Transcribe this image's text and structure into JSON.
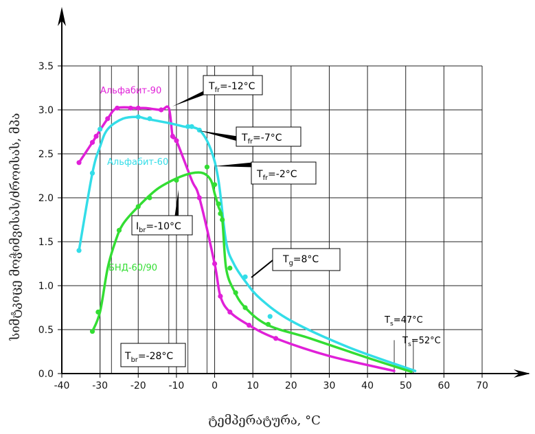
{
  "chart_data": {
    "type": "line",
    "xlabel": "ტემპერატურა, °C",
    "ylabel": "სიმტკიცე მოჭიმვისას/ძროისას, მპა",
    "xlim": [
      -40,
      70
    ],
    "ylim": [
      0,
      3.5
    ],
    "x_ticks": [
      -40,
      -30,
      -20,
      -10,
      0,
      10,
      20,
      30,
      40,
      50,
      60,
      70
    ],
    "y_ticks": [
      0.0,
      0.5,
      1.0,
      1.5,
      2.0,
      2.5,
      3.0,
      3.5
    ],
    "x_tick_labels": [
      "-40",
      "-30",
      "-20",
      "-10",
      "0",
      "10",
      "20",
      "30",
      "40",
      "50",
      "60",
      "70"
    ],
    "y_tick_labels": [
      "0.0",
      "0.5",
      "1.0",
      "1.5",
      "2.0",
      "2.5",
      "3.0",
      "3.5"
    ],
    "grid": true,
    "series": [
      {
        "name": "Альфабит-90",
        "color": "#e020d8",
        "points": [
          [
            -35.5,
            2.4
          ],
          [
            -32,
            2.63
          ],
          [
            -31,
            2.7
          ],
          [
            -28,
            2.9
          ],
          [
            -25.5,
            3.02
          ],
          [
            -20,
            3.02
          ],
          [
            -18,
            3.02
          ],
          [
            -14,
            3.0
          ],
          [
            -12,
            3.02
          ],
          [
            -11,
            2.7
          ],
          [
            -10,
            2.65
          ],
          [
            -6,
            2.2
          ],
          [
            -4,
            2.0
          ],
          [
            0,
            1.25
          ],
          [
            1.5,
            0.88
          ],
          [
            4,
            0.7
          ],
          [
            9,
            0.55
          ],
          [
            16,
            0.4
          ],
          [
            30,
            0.2
          ],
          [
            47,
            0.03
          ]
        ],
        "markers": [
          [
            -35.5,
            2.4
          ],
          [
            -32,
            2.63
          ],
          [
            -31,
            2.7
          ],
          [
            -28,
            2.9
          ],
          [
            -25.5,
            3.02
          ],
          [
            -22,
            3.02
          ],
          [
            -20,
            3.02
          ],
          [
            -14,
            3.0
          ],
          [
            -11,
            2.7
          ],
          [
            -10,
            2.65
          ],
          [
            -4,
            2.0
          ],
          [
            0,
            1.25
          ],
          [
            1.5,
            0.88
          ],
          [
            4,
            0.7
          ],
          [
            9,
            0.55
          ],
          [
            16,
            0.4
          ]
        ]
      },
      {
        "name": "Альфабит-60",
        "color": "#33dde8",
        "points": [
          [
            -35.5,
            1.4
          ],
          [
            -32,
            2.28
          ],
          [
            -30,
            2.58
          ],
          [
            -28,
            2.78
          ],
          [
            -24,
            2.9
          ],
          [
            -20,
            2.92
          ],
          [
            -18,
            2.9
          ],
          [
            -12,
            2.85
          ],
          [
            -8,
            2.81
          ],
          [
            -4,
            2.77
          ],
          [
            -1,
            2.55
          ],
          [
            1,
            2.2
          ],
          [
            3,
            1.5
          ],
          [
            5,
            1.25
          ],
          [
            8,
            1.05
          ],
          [
            12,
            0.85
          ],
          [
            20,
            0.6
          ],
          [
            35,
            0.3
          ],
          [
            52.5,
            0.03
          ]
        ],
        "markers": [
          [
            -35.5,
            1.4
          ],
          [
            -32,
            2.28
          ],
          [
            -30,
            2.78
          ],
          [
            -20,
            2.92
          ],
          [
            -17,
            2.9
          ],
          [
            -7,
            2.81
          ],
          [
            -6,
            2.81
          ],
          [
            -4,
            2.77
          ],
          [
            8,
            1.1
          ],
          [
            14.5,
            0.65
          ]
        ]
      },
      {
        "name": "БНД-60/90",
        "color": "#33dd33",
        "points": [
          [
            -32,
            0.48
          ],
          [
            -30,
            0.7
          ],
          [
            -28,
            1.2
          ],
          [
            -26,
            1.5
          ],
          [
            -24,
            1.7
          ],
          [
            -20,
            1.9
          ],
          [
            -15,
            2.1
          ],
          [
            -10,
            2.22
          ],
          [
            -6,
            2.28
          ],
          [
            -3,
            2.28
          ],
          [
            -1,
            2.2
          ],
          [
            0,
            2.05
          ],
          [
            1,
            1.9
          ],
          [
            2,
            1.75
          ],
          [
            3,
            1.2
          ],
          [
            5,
            0.95
          ],
          [
            8,
            0.75
          ],
          [
            14,
            0.55
          ],
          [
            25,
            0.4
          ],
          [
            40,
            0.18
          ],
          [
            51.5,
            0.02
          ]
        ],
        "markers": [
          [
            -32,
            0.48
          ],
          [
            -30.5,
            0.7
          ],
          [
            -25,
            1.63
          ],
          [
            -20,
            1.9
          ],
          [
            -17,
            2.0
          ],
          [
            -10,
            2.2
          ],
          [
            -2,
            2.35
          ],
          [
            0,
            2.15
          ],
          [
            1,
            1.93
          ],
          [
            1.5,
            1.82
          ],
          [
            2,
            1.75
          ],
          [
            4,
            1.2
          ],
          [
            5.5,
            0.92
          ],
          [
            8,
            0.75
          ],
          [
            14,
            0.56
          ]
        ]
      }
    ],
    "reference_lines_x": [
      -30,
      -27,
      -12,
      -7,
      -2,
      10
    ],
    "reference_marks_x": [
      47,
      52
    ],
    "annotations": {
      "tfr12": "T_fr=-12°C",
      "tfr7": "T_fr=-7°C",
      "tfr2": "T_fr=-2°C",
      "ibr10": "I_br=-10°C",
      "tg8": "T_g=8°C",
      "tbr28": "T_br=-28°C",
      "ts47": "T_s=47°C",
      "ts52": "T_s=52°C"
    }
  }
}
